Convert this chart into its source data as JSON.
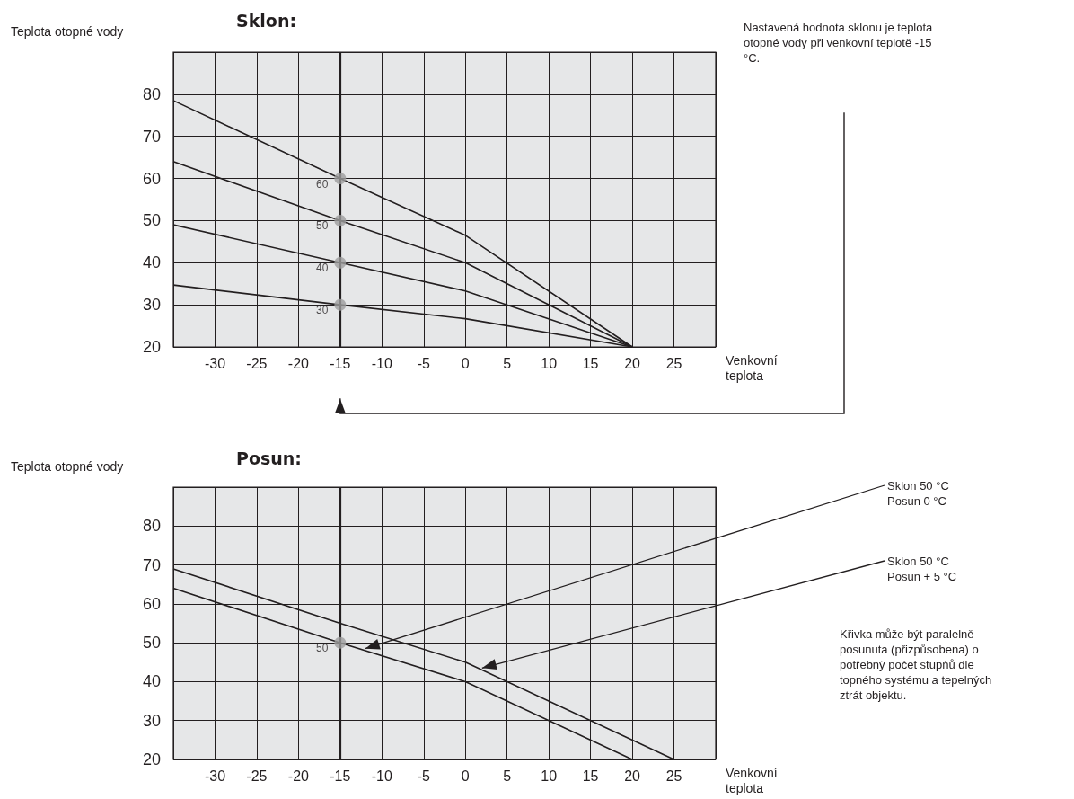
{
  "chart_data": [
    {
      "type": "line",
      "title": "Sklon:",
      "xlabel": "Venkovní teplota",
      "ylabel": "Teplota otopné vody",
      "xlim": [
        -35,
        30
      ],
      "xticks": [
        -30,
        -25,
        -20,
        -15,
        -10,
        -5,
        0,
        5,
        10,
        15,
        20,
        25
      ],
      "ylim": [
        20,
        90
      ],
      "yticks": [
        20,
        30,
        40,
        50,
        60,
        70,
        80
      ],
      "grid": true,
      "series": [
        {
          "color": "#231f20",
          "marker": "none",
          "line_style": "solid",
          "x": [
            -35,
            -15,
            0,
            20
          ],
          "values": [
            78.5,
            60,
            46.5,
            20
          ]
        },
        {
          "color": "#231f20",
          "marker": "none",
          "line_style": "solid",
          "x": [
            -35,
            -15,
            0,
            20
          ],
          "values": [
            64,
            50,
            40,
            20
          ]
        },
        {
          "color": "#231f20",
          "marker": "none",
          "line_style": "solid",
          "x": [
            -35,
            -15,
            0,
            20
          ],
          "values": [
            49,
            40,
            33.3,
            20
          ]
        },
        {
          "color": "#231f20",
          "marker": "none",
          "line_style": "solid",
          "x": [
            -35,
            -15,
            0,
            20
          ],
          "values": [
            34.7,
            30,
            26.7,
            20
          ]
        },
        {
          "type": "scatter",
          "color": "#9d9d9d",
          "marker": "circle",
          "data_labels": true,
          "x": [
            -15,
            -15,
            -15,
            -15
          ],
          "values": [
            60,
            50,
            40,
            30
          ]
        }
      ],
      "ref_lines": [
        {
          "axis": "x",
          "value": -15,
          "color": "#231f20"
        }
      ],
      "annotations": [
        "Nastavená hodnota sklonu je teplota otopné vody při venkovní teplotě -15 °C."
      ]
    },
    {
      "type": "line",
      "title": "Posun:",
      "xlabel": "Venkovní teplota",
      "ylabel": "Teplota otopné vody",
      "xlim": [
        -35,
        30
      ],
      "xticks": [
        -30,
        -25,
        -20,
        -15,
        -10,
        -5,
        0,
        5,
        10,
        15,
        20,
        25
      ],
      "ylim": [
        20,
        90
      ],
      "yticks": [
        20,
        30,
        40,
        50,
        60,
        70,
        80
      ],
      "grid": true,
      "series": [
        {
          "color": "#231f20",
          "marker": "none",
          "line_style": "solid",
          "x": [
            -35,
            -15,
            0,
            20
          ],
          "values": [
            64,
            50,
            40,
            20
          ]
        },
        {
          "color": "#231f20",
          "marker": "none",
          "line_style": "solid",
          "x": [
            -35,
            -15,
            0,
            25
          ],
          "values": [
            69,
            55,
            45,
            20
          ]
        },
        {
          "type": "scatter",
          "color": "#9d9d9d",
          "marker": "circle",
          "data_labels": true,
          "x": [
            -15
          ],
          "values": [
            50
          ]
        }
      ],
      "ref_lines": [
        {
          "axis": "x",
          "value": -15,
          "color": "#231f20"
        }
      ],
      "annotations": [
        {
          "text": "Sklon 50 °C\nPosun 0 °C",
          "x": -12,
          "y": 48.5
        },
        {
          "text": "Sklon 50 °C\nPosun + 5 °C",
          "x": 2,
          "y": 43.5
        },
        "Křivka může být paralelně posunuta (přizpůsobena) o potřebný počet stupňů dle topného systému a tepelných ztrát objektu."
      ]
    }
  ]
}
